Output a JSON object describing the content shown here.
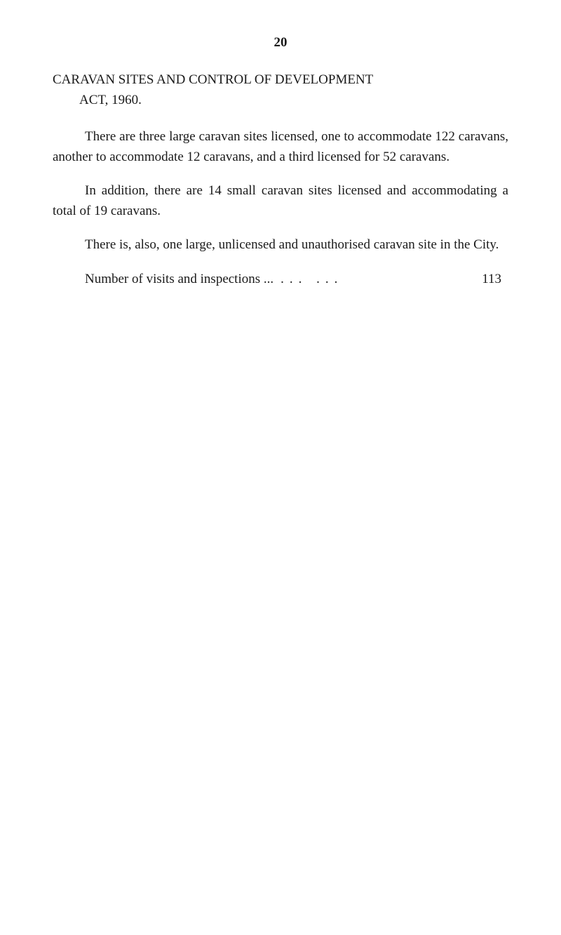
{
  "pageNumber": "20",
  "heading": {
    "line1": "CARAVAN SITES AND CONTROL OF DEVELOPMENT",
    "line2": "ACT, 1960."
  },
  "paragraph1": "There are three large caravan sites licensed, one to accom­modate 122 caravans, another to accommodate 12 caravans, and a third licensed for 52 caravans.",
  "paragraph2": "In addition, there are 14 small caravan sites licensed and accommodating a total of 19 caravans.",
  "paragraph3": "There is, also, one large, unlicensed and unauthorised caravan site in the City.",
  "visits": {
    "label": "Number of visits and inspections ...",
    "dots": "...   ...",
    "value": "113"
  }
}
